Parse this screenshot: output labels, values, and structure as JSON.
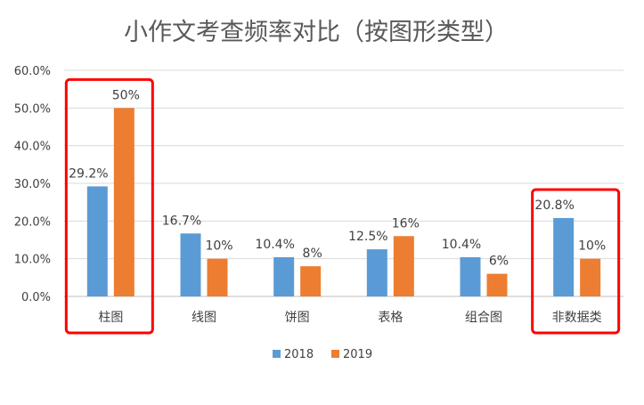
{
  "chart_data": {
    "type": "bar",
    "title": "小作文考查频率对比（按图形类型）",
    "categories": [
      "柱图",
      "线图",
      "饼图",
      "表格",
      "组合图",
      "非数据类"
    ],
    "series": [
      {
        "name": "2018",
        "color": "#5B9BD5",
        "values": [
          29.2,
          16.7,
          10.4,
          12.5,
          10.4,
          20.8
        ],
        "labels": [
          "29.2%",
          "16.7%",
          "10.4%",
          "12.5%",
          "10.4%",
          "20.8%"
        ]
      },
      {
        "name": "2019",
        "color": "#ED7D31",
        "values": [
          50,
          10,
          8,
          16,
          6,
          10
        ],
        "labels": [
          "50%",
          "10%",
          "8%",
          "16%",
          "6%",
          "10%"
        ]
      }
    ],
    "yticks": [
      "0.0%",
      "10.0%",
      "20.0%",
      "30.0%",
      "40.0%",
      "50.0%",
      "60.0%"
    ],
    "ylim": [
      0,
      60
    ],
    "grid": true,
    "legend": "bottom",
    "highlighted_categories": [
      "柱图",
      "非数据类"
    ],
    "highlight_color": "#FF0000"
  }
}
